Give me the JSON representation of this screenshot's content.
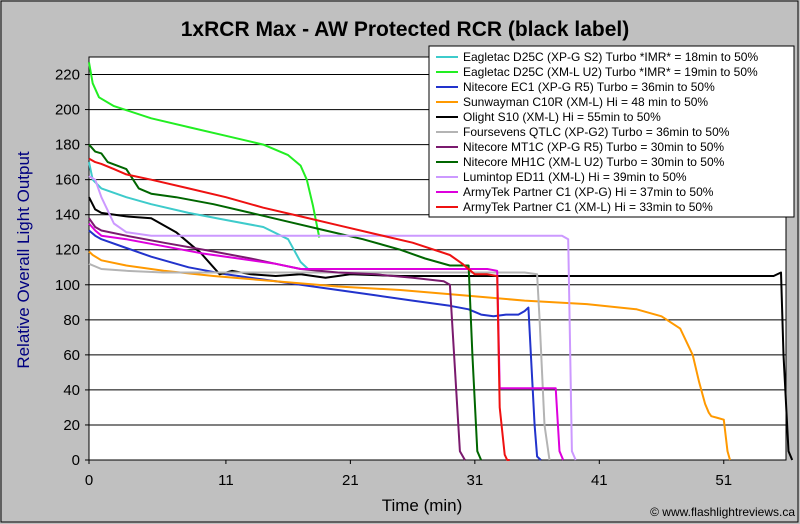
{
  "chart_data": {
    "type": "line",
    "title": "1xRCR Max - AW Protected RCR (black label)",
    "xlabel": "Time (min)",
    "ylabel": "Relative Overall Light Output",
    "xlim": [
      0,
      56
    ],
    "ylim": [
      0,
      230
    ],
    "x_ticks": [
      0,
      11,
      21,
      31,
      41,
      51
    ],
    "y_ticks": [
      0,
      20,
      40,
      60,
      80,
      100,
      120,
      140,
      160,
      180,
      200,
      220
    ],
    "grid": true,
    "legend_position": "top-right",
    "credit": "© www.flashlightreviews.ca",
    "series": [
      {
        "name": "Eagletac D25C (XP-G S2) Turbo *IMR* = 18min to 50%",
        "color": "#3ecbcb",
        "x": [
          0,
          0.3,
          1,
          3,
          5,
          8,
          11,
          14,
          16,
          17,
          17.6,
          18
        ],
        "y": [
          170,
          160,
          155,
          150,
          146,
          141,
          137,
          133,
          126,
          113,
          109,
          109
        ]
      },
      {
        "name": "Eagletac D25C (XM-L U2) Turbo *IMR* = 19min to 50%",
        "color": "#22ee22",
        "x": [
          0,
          0.3,
          0.8,
          2,
          5,
          8,
          11,
          14,
          16,
          17,
          17.5,
          18,
          18.5
        ],
        "y": [
          227,
          215,
          207,
          202,
          195,
          190,
          185,
          180,
          174,
          168,
          160,
          145,
          127
        ]
      },
      {
        "name": "Nitecore EC1 (XP-G R5) Turbo = 36min to 50%",
        "color": "#2233cc",
        "x": [
          0,
          0.5,
          1,
          3,
          5,
          8,
          11,
          14,
          17,
          20,
          23,
          26,
          29,
          30.5,
          31.5,
          32.5,
          33.5,
          34.5,
          35,
          35.3,
          35.8,
          36,
          36.3
        ],
        "y": [
          131,
          128,
          126,
          121,
          116,
          110,
          106,
          103,
          100,
          97,
          94,
          91,
          88,
          86,
          83,
          82,
          83,
          83,
          85,
          87,
          20,
          2,
          0
        ]
      },
      {
        "name": "Sunwayman C10R (XM-L) Hi = 48 min to 50%",
        "color": "#ff9900",
        "x": [
          0,
          0.3,
          1,
          3,
          6,
          10,
          15,
          20,
          25,
          30,
          35,
          40,
          44,
          46,
          47.5,
          48.5,
          49,
          49.5,
          49.8,
          50,
          50.5,
          51,
          51.3,
          51.5
        ],
        "y": [
          119,
          117,
          114,
          111,
          108,
          105,
          102,
          99,
          97,
          94,
          91,
          89,
          86,
          82,
          75,
          60,
          45,
          32,
          27,
          25,
          24,
          23,
          5,
          0
        ]
      },
      {
        "name": "Olight S10 (XM-L) Hi = 55min to 50%",
        "color": "#000000",
        "x": [
          0,
          0.5,
          1,
          3,
          5,
          7,
          9,
          10.5,
          11.5,
          13,
          15,
          17,
          19,
          21,
          25,
          30,
          35,
          40,
          45,
          50,
          55,
          55.6,
          55.8,
          56.2,
          56.5
        ],
        "y": [
          150,
          143,
          141,
          139,
          138,
          130,
          118,
          106,
          108,
          106,
          105,
          106,
          104,
          106,
          105,
          105,
          105,
          105,
          105,
          105,
          105,
          107,
          60,
          5,
          0
        ]
      },
      {
        "name": "Foursevens QTLC (XP-G2) Turbo = 36min to 50%",
        "color": "#b4b4b4",
        "x": [
          0,
          1,
          3,
          6,
          10,
          15,
          20,
          25,
          30,
          35,
          36,
          36.2,
          36.6,
          37
        ],
        "y": [
          112,
          109,
          108,
          107,
          107,
          107,
          107,
          107,
          107,
          107,
          106,
          80,
          20,
          0
        ]
      },
      {
        "name": "Nitecore MT1C (XP-G R5) Turbo = 30min to 50%",
        "color": "#7a1a6e",
        "x": [
          0,
          0.5,
          1,
          3,
          6,
          10,
          13,
          15,
          17,
          20,
          23,
          26,
          28.5,
          29,
          29.5,
          29.8,
          30.2
        ],
        "y": [
          138,
          133,
          131,
          128,
          124,
          119,
          115,
          112,
          109,
          107,
          106,
          104,
          102,
          100,
          40,
          5,
          0
        ]
      },
      {
        "name": "Nitecore MH1C (XM-L U2) Turbo = 30min to 50%",
        "color": "#006600",
        "x": [
          0,
          0.5,
          1,
          1.5,
          3,
          4,
          5,
          7,
          10,
          13,
          16,
          19,
          22,
          25,
          27,
          29,
          30.5,
          30.8,
          31.2,
          31.5
        ],
        "y": [
          180,
          176,
          175,
          170,
          166,
          155,
          152,
          150,
          146,
          141,
          136,
          131,
          126,
          120,
          115,
          111,
          111,
          60,
          5,
          0
        ]
      },
      {
        "name": "Lumintop ED11 (XM-L) Hi = 39min to 50%",
        "color": "#cc99ff",
        "x": [
          0,
          0.5,
          1,
          2,
          3,
          5,
          8,
          11,
          15,
          20,
          25,
          30,
          33,
          36,
          38,
          38.5,
          38.8,
          39.1
        ],
        "y": [
          162,
          160,
          150,
          135,
          130,
          128,
          128,
          128,
          128,
          128,
          128,
          128,
          128,
          128,
          128,
          126,
          5,
          0
        ]
      },
      {
        "name": "ArmyTek Partner C1 (XP-G) Hi = 37min to 50%",
        "color": "#dd00dd",
        "x": [
          0,
          0.5,
          1,
          3,
          6,
          9,
          12,
          15,
          17,
          19,
          23,
          27,
          30,
          32,
          32.8,
          33,
          35,
          37.5,
          37.8,
          38.1
        ],
        "y": [
          135,
          131,
          128,
          126,
          122,
          118,
          115,
          112,
          109,
          109,
          109,
          109,
          109,
          109,
          108,
          41,
          41,
          41,
          5,
          0
        ]
      },
      {
        "name": "ArmyTek Partner C1 (XM-L) Hi = 33min to 50%",
        "color": "#ee1111",
        "x": [
          0,
          0.5,
          1,
          2,
          3,
          5,
          8,
          11,
          14,
          17,
          20,
          23,
          26,
          29,
          30,
          31,
          32,
          32.8,
          33,
          33.4,
          33.6,
          33.8
        ],
        "y": [
          172,
          170,
          169,
          166,
          163,
          160,
          155,
          150,
          144,
          139,
          134,
          129,
          124,
          117,
          112,
          106,
          106,
          105,
          30,
          3,
          0,
          0
        ]
      }
    ]
  }
}
